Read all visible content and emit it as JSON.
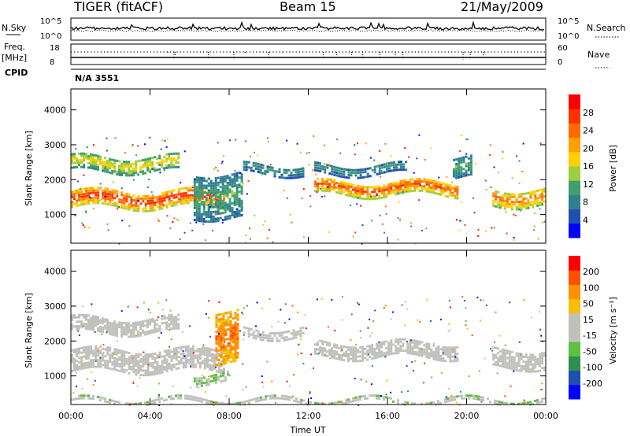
{
  "header": {
    "title": "TIGER (fitACF)",
    "beam": "Beam 15",
    "date": "21/May/2009",
    "cpid_label": "CPID",
    "cpid_value": "N/A 3551"
  },
  "strips": {
    "nsky_label": "N.Sky",
    "nsky_ticks": [
      "10^5",
      "10^0"
    ],
    "nsearch_label": "N.Search",
    "nsearch_ticks": [
      "10^5",
      "10^0"
    ],
    "freq_label": "Freq.",
    "freq_unit": "[MHz]",
    "freq_ticks": [
      "18",
      "8"
    ],
    "nave_label": "Nave",
    "nave_ticks": [
      "60",
      "0"
    ]
  },
  "colors": {
    "power_scale": [
      "#0000ff",
      "#1f4fb0",
      "#2f7f8f",
      "#3f9f6f",
      "#9fcf3f",
      "#ffd000",
      "#ff9f00",
      "#ff6a00",
      "#ff3300",
      "#ff0000"
    ],
    "velocity_scale": [
      "#0000ff",
      "#1f4fb0",
      "#2f8f4f",
      "#5fbf3f",
      "#c0c0bc",
      "#c0c0bc",
      "#f5c000",
      "#ff9000",
      "#ff5000",
      "#ff0000"
    ]
  },
  "chart_data": [
    {
      "type": "heatmap",
      "panel": "power",
      "ylabel": "Slant Range [km]",
      "ylim": [
        180,
        4600
      ],
      "yticks": [
        "4000",
        "3000",
        "2000",
        "1000"
      ],
      "xlim": [
        0,
        24
      ],
      "colorbar": {
        "label": "Power [dB]",
        "ticks": [
          "28",
          "24",
          "20",
          "16",
          "12",
          "8",
          "4"
        ],
        "range": [
          0,
          32
        ]
      },
      "echo_bands": [
        {
          "t0": 0,
          "t1": 7.8,
          "center": 1500,
          "width": 500,
          "value": 28
        },
        {
          "t0": 0,
          "t1": 5.5,
          "center": 2500,
          "width": 450,
          "value": 18
        },
        {
          "t0": 6.2,
          "t1": 8.7,
          "center": 1600,
          "width": 1300,
          "value": 12
        },
        {
          "t0": 8.7,
          "t1": 11.8,
          "center": 2350,
          "width": 300,
          "value": 10
        },
        {
          "t0": 12.3,
          "t1": 19.6,
          "center": 1800,
          "width": 400,
          "value": 26
        },
        {
          "t0": 12.3,
          "t1": 17.0,
          "center": 2350,
          "width": 300,
          "value": 10
        },
        {
          "t0": 19.3,
          "t1": 20.3,
          "center": 2400,
          "width": 600,
          "value": 12
        },
        {
          "t0": 21.3,
          "t1": 24,
          "center": 1550,
          "width": 500,
          "value": 24
        }
      ]
    },
    {
      "type": "heatmap",
      "panel": "velocity",
      "xlabel": "Time UT",
      "ylabel": "Slant Range [km]",
      "ylim": [
        180,
        4600
      ],
      "yticks": [
        "4000",
        "3000",
        "2000",
        "1000"
      ],
      "xlim": [
        0,
        24
      ],
      "xticks": [
        "00:00",
        "04:00",
        "08:00",
        "12:00",
        "16:00",
        "20:00",
        "00:00"
      ],
      "colorbar": {
        "label": "Velocity [m s⁻¹]",
        "ticks": [
          "200",
          "100",
          "50",
          "15",
          "-15",
          "-50",
          "-100",
          "-200"
        ],
        "range": [
          -250,
          250
        ]
      },
      "echo_bands": [
        {
          "t0": 0,
          "t1": 7.8,
          "center": 1500,
          "width": 650,
          "value": 0
        },
        {
          "t0": 0,
          "t1": 5.5,
          "center": 2500,
          "width": 450,
          "value": -20
        },
        {
          "t0": 7.3,
          "t1": 8.5,
          "center": 2200,
          "width": 1500,
          "value": 150
        },
        {
          "t0": 6.2,
          "t1": 8.0,
          "center": 1000,
          "width": 300,
          "value": -60
        },
        {
          "t0": 8.7,
          "t1": 11.8,
          "center": 2300,
          "width": 300,
          "value": 0
        },
        {
          "t0": 12.3,
          "t1": 19.6,
          "center": 1800,
          "width": 450,
          "value": 0
        },
        {
          "t0": 21.3,
          "t1": 24,
          "center": 1550,
          "width": 550,
          "value": 0
        },
        {
          "t0": 0,
          "t1": 24,
          "center": 350,
          "width": 150,
          "value": -40
        }
      ]
    }
  ]
}
